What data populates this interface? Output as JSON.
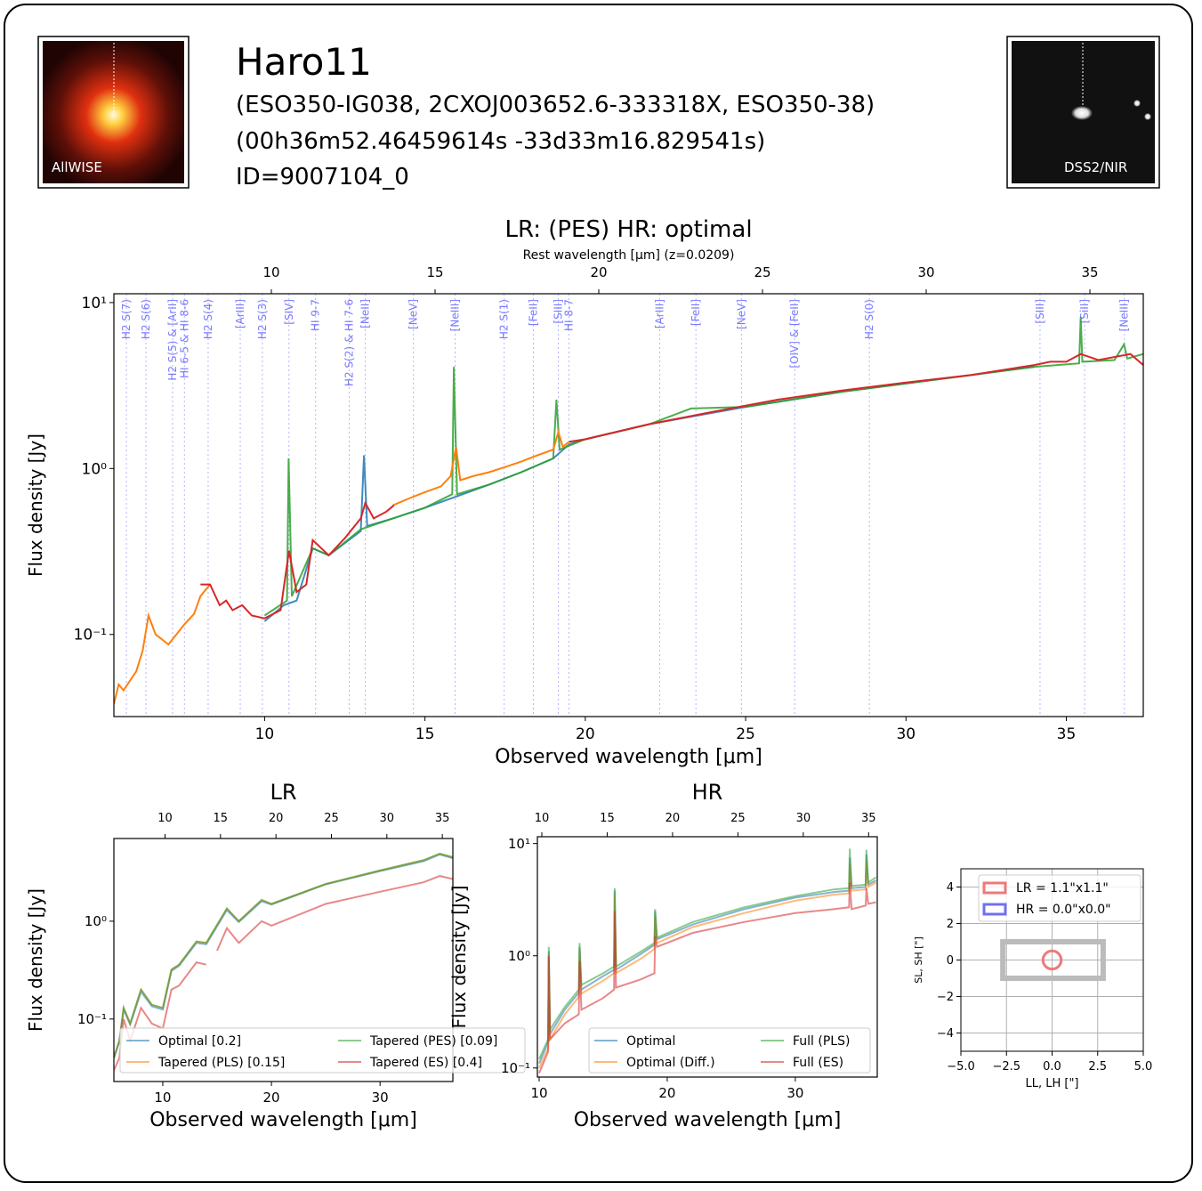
{
  "header": {
    "title": "Haro11",
    "aliases": "(ESO350-IG038, 2CXOJ003652.6-333318X, ESO350-38)",
    "coordinates": "(00h36m52.46459614s -33d33m16.829541s)",
    "id": "ID=9007104_0",
    "image_left_label": "AllWISE",
    "image_right_label": "DSS2/NIR"
  },
  "chart_data": [
    {
      "type": "line",
      "title": "LR:  (PES) HR: optimal",
      "x2label": "Rest wavelength [μm] (z=0.0209)",
      "xlabel": "Observed wavelength [μm]",
      "ylabel": "Flux density [Jy]",
      "log_y": true,
      "xlim": [
        5.3,
        37.4
      ],
      "xticks": [
        10,
        15,
        20,
        25,
        30,
        35
      ],
      "x2lim": [
        5.19,
        36.63
      ],
      "x2ticks": [
        10,
        15,
        20,
        25,
        30,
        35
      ],
      "ylim": [
        0.032,
        11.3
      ],
      "yticks": [
        {
          "value": 0.1,
          "label": "10⁻¹"
        },
        {
          "value": 1,
          "label": "10⁰"
        },
        {
          "value": 10,
          "label": "10¹"
        }
      ],
      "lines": [
        {
          "label": "H2 S(7)",
          "x": 5.69
        },
        {
          "label": "H2 S(6)",
          "x": 6.3
        },
        {
          "label": "H2 S(5) & [ArII]",
          "x": 7.13
        },
        {
          "label": "HI 6-5 & HI 8-6",
          "x": 7.5
        },
        {
          "label": "H2 S(4)",
          "x": 8.24
        },
        {
          "label": "[ArIII]",
          "x": 9.24
        },
        {
          "label": "H2 S(3)",
          "x": 9.93
        },
        {
          "label": "[SIV]",
          "x": 10.76
        },
        {
          "label": "HI 9-7",
          "x": 11.59
        },
        {
          "label": "H2 S(2) & HI 7-6",
          "x": 12.64
        },
        {
          "label": "[NeII]",
          "x": 13.14
        },
        {
          "label": "[NeV]",
          "x": 14.64
        },
        {
          "label": "[NeIII]",
          "x": 15.94
        },
        {
          "label": "H2 S(1)",
          "x": 17.47
        },
        {
          "label": "[FeII]",
          "x": 18.38
        },
        {
          "label": "[SIII]",
          "x": 19.16
        },
        {
          "label": "HI 8-7",
          "x": 19.49
        },
        {
          "label": "[ArIII]",
          "x": 22.32
        },
        {
          "label": "[FeII]",
          "x": 23.45
        },
        {
          "label": "[NeV]",
          "x": 24.87
        },
        {
          "label": "[OIV] & [FeII]",
          "x": 26.53
        },
        {
          "label": "H2 S(0)",
          "x": 28.86
        },
        {
          "label": "[SIII]",
          "x": 34.18
        },
        {
          "label": "[SiII]",
          "x": 35.57
        },
        {
          "label": "[NeIII]",
          "x": 36.81
        }
      ],
      "series": [
        {
          "color": "#1f77b4",
          "x": [
            10.0,
            10.6,
            11.0,
            11.5,
            12.0,
            13.0,
            13.1,
            13.2,
            14,
            15,
            16,
            17,
            18,
            19,
            19.5,
            20,
            22,
            25,
            28,
            31,
            34
          ],
          "values": [
            0.12,
            0.15,
            0.16,
            0.33,
            0.3,
            0.42,
            1.2,
            0.45,
            0.5,
            0.58,
            0.68,
            0.8,
            0.95,
            1.15,
            1.4,
            1.5,
            1.85,
            2.35,
            2.9,
            3.45,
            4.1
          ]
        },
        {
          "color": "#2ca02c",
          "x": [
            10.0,
            10.7,
            10.75,
            10.85,
            11.5,
            12,
            13,
            14,
            15,
            15.85,
            15.9,
            16,
            17,
            18,
            19,
            19.1,
            19.2,
            20,
            22,
            23.3,
            25,
            28,
            31,
            34,
            35.4,
            35.45,
            35.5,
            36.5,
            36.8,
            36.9,
            37.4
          ],
          "values": [
            0.13,
            0.16,
            1.15,
            0.17,
            0.33,
            0.3,
            0.43,
            0.5,
            0.58,
            0.7,
            4.1,
            0.7,
            0.8,
            0.95,
            1.15,
            2.6,
            1.3,
            1.5,
            1.85,
            2.3,
            2.35,
            2.9,
            3.45,
            4.1,
            4.3,
            8.2,
            4.4,
            4.5,
            5.6,
            4.6,
            4.9
          ]
        },
        {
          "color": "#ff7f0e",
          "x": [
            5.3,
            5.45,
            5.6,
            6.0,
            6.2,
            6.38,
            6.6,
            7.0,
            7.5,
            7.8,
            8.0,
            8.3,
            11,
            14.0,
            14.5,
            15.0,
            15.5,
            15.8,
            15.97,
            16.1,
            16.5,
            17.0,
            17.5,
            18.0,
            18.5,
            19.0,
            19.16,
            19.3,
            19.5
          ],
          "values": [
            0.038,
            0.05,
            0.046,
            0.06,
            0.08,
            0.13,
            0.1,
            0.087,
            0.115,
            0.133,
            0.17,
            0.2,
            null,
            0.6,
            0.66,
            0.72,
            0.78,
            0.9,
            1.35,
            0.85,
            0.9,
            0.95,
            1.02,
            1.1,
            1.2,
            1.3,
            1.66,
            1.35,
            1.45
          ]
        },
        {
          "color": "#d62728",
          "x": [
            8.0,
            8.3,
            8.6,
            8.8,
            9.0,
            9.3,
            9.6,
            10.0,
            10.5,
            10.76,
            11.0,
            11.3,
            11.5,
            12.0,
            12.5,
            13.0,
            13.14,
            13.4,
            13.8,
            14.03,
            17,
            19.5,
            20,
            22,
            24,
            26,
            28,
            30,
            32,
            34,
            34.5,
            35,
            35.45,
            36,
            37,
            37.4
          ],
          "values": [
            0.2,
            0.2,
            0.15,
            0.16,
            0.14,
            0.15,
            0.13,
            0.125,
            0.14,
            0.32,
            0.18,
            0.2,
            0.37,
            0.3,
            0.38,
            0.5,
            0.62,
            0.5,
            0.55,
            0.6,
            null,
            1.45,
            1.5,
            1.85,
            2.2,
            2.6,
            2.95,
            3.3,
            3.65,
            4.2,
            4.4,
            4.4,
            4.9,
            4.5,
            4.9,
            4.2
          ]
        }
      ]
    },
    {
      "type": "line",
      "title": "LR",
      "xlabel": "Observed wavelength [μm]",
      "ylabel": "Flux density [Jy]",
      "log_y": true,
      "xlim": [
        5.5,
        36.7
      ],
      "xticks": [
        10,
        20,
        30
      ],
      "x2lim": [
        5.39,
        35.95
      ],
      "x2ticks": [
        10,
        15,
        20,
        25,
        30,
        35
      ],
      "ylim": [
        0.023,
        7
      ],
      "yticks": [
        {
          "value": 0.1,
          "label": "10⁻¹"
        },
        {
          "value": 1,
          "label": "10⁰"
        }
      ],
      "series": [
        {
          "name": "Optimal [0.2]",
          "color": "#1f77b4",
          "x": [
            5.5,
            6,
            6.4,
            7,
            8,
            9,
            10,
            10.8,
            11.5,
            13.1,
            14,
            15.9,
            17,
            19.1,
            20,
            25,
            30,
            34,
            35.5,
            36.7
          ],
          "values": [
            0.04,
            0.058,
            0.125,
            0.088,
            0.19,
            0.135,
            0.125,
            0.31,
            0.35,
            0.6,
            0.58,
            1.3,
            0.98,
            1.6,
            1.48,
            2.38,
            3.25,
            4.1,
            4.8,
            4.4
          ]
        },
        {
          "name": "Tapered (PLS) [0.15]",
          "color": "#ff7f0e",
          "x": [
            5.5,
            6,
            6.4,
            7,
            8,
            9,
            10,
            10.8,
            11.5,
            13.1,
            14,
            15.9,
            17,
            19.1,
            20,
            25,
            30,
            34,
            35.5,
            36.7
          ],
          "values": [
            0.041,
            0.06,
            0.13,
            0.09,
            0.2,
            0.14,
            0.13,
            0.32,
            0.36,
            0.62,
            0.6,
            1.35,
            1.0,
            1.65,
            1.5,
            2.4,
            3.3,
            4.2,
            4.9,
            4.5
          ]
        },
        {
          "name": "Tapered (PES) [0.09]",
          "color": "#2ca02c",
          "x": [
            5.5,
            6,
            6.4,
            7,
            8,
            9,
            10,
            10.8,
            11.5,
            13.1,
            14,
            15.9,
            17,
            19.1,
            20,
            25,
            30,
            34,
            35.5,
            36.7
          ],
          "values": [
            0.04,
            0.06,
            0.13,
            0.09,
            0.2,
            0.14,
            0.13,
            0.32,
            0.36,
            0.62,
            0.6,
            1.35,
            1.0,
            1.65,
            1.5,
            2.4,
            3.3,
            4.2,
            4.9,
            4.5
          ]
        },
        {
          "name": "Tapered (ES) [0.4]",
          "color": "#d62728",
          "x": [
            5.5,
            6,
            6.4,
            7,
            8,
            9,
            10,
            10.8,
            11.5,
            13.1,
            14,
            14.5,
            15,
            15.9,
            17,
            19.1,
            20,
            25,
            30,
            34,
            35.5,
            36.7
          ],
          "values": [
            0.03,
            0.04,
            0.1,
            0.06,
            0.13,
            0.09,
            0.08,
            0.2,
            0.22,
            0.38,
            0.36,
            null,
            0.5,
            0.85,
            0.6,
            1.0,
            0.9,
            1.5,
            2.0,
            2.5,
            2.9,
            2.7
          ]
        }
      ]
    },
    {
      "type": "line",
      "title": "HR",
      "xlabel": "Observed wavelength [μm]",
      "ylabel": "Flux density [Jy]",
      "log_y": true,
      "xlim": [
        9.86,
        36.4
      ],
      "xticks": [
        10,
        20,
        30
      ],
      "x2lim": [
        9.66,
        35.66
      ],
      "x2ticks": [
        10,
        15,
        20,
        25,
        30,
        35
      ],
      "ylim": [
        0.083,
        11.5
      ],
      "yticks": [
        {
          "value": 0.1,
          "label": "10⁻¹"
        },
        {
          "value": 1,
          "label": "10⁰"
        },
        {
          "value": 10,
          "label": "10¹"
        }
      ],
      "series": [
        {
          "name": "Optimal",
          "color": "#1f77b4",
          "x": [
            10,
            10.7,
            10.75,
            10.85,
            12,
            13.1,
            13.15,
            13.3,
            15,
            15.85,
            15.9,
            16,
            18,
            19,
            19.05,
            19.2,
            22,
            26,
            30,
            33,
            34.2,
            34.25,
            34.4,
            35.5,
            35.55,
            35.7,
            36.3
          ],
          "values": [
            0.11,
            0.17,
            1.1,
            0.2,
            0.33,
            0.47,
            1.2,
            0.5,
            0.66,
            0.75,
            3.8,
            0.75,
            1.05,
            1.25,
            2.5,
            1.4,
            1.9,
            2.6,
            3.3,
            3.7,
            3.8,
            7.5,
            4.0,
            4.1,
            8.0,
            4.3,
            4.7
          ]
        },
        {
          "name": "Optimal (Diff.)",
          "color": "#ff7f0e",
          "x": [
            10,
            10.7,
            10.75,
            10.85,
            12,
            13.1,
            13.15,
            13.3,
            15,
            15.85,
            15.9,
            16,
            18,
            19,
            19.05,
            19.2,
            22,
            26,
            30,
            33,
            34.2,
            34.25,
            34.4,
            35.5,
            35.55,
            35.7,
            36.3
          ],
          "values": [
            0.1,
            0.15,
            1.0,
            0.18,
            0.3,
            0.43,
            1.1,
            0.46,
            0.6,
            0.7,
            3.5,
            0.7,
            0.95,
            1.15,
            2.3,
            1.3,
            1.8,
            2.4,
            3.1,
            3.5,
            3.6,
            6.5,
            3.8,
            3.9,
            7.0,
            4.1,
            4.5
          ]
        },
        {
          "name": "Full (PLS)",
          "color": "#2ca02c",
          "x": [
            10,
            10.7,
            10.75,
            10.85,
            12,
            13.1,
            13.15,
            13.3,
            15,
            15.85,
            15.9,
            16,
            18,
            19,
            19.05,
            19.2,
            22,
            26,
            30,
            33,
            34.2,
            34.25,
            34.4,
            35.5,
            35.55,
            35.7,
            36.3
          ],
          "values": [
            0.12,
            0.18,
            1.2,
            0.22,
            0.35,
            0.5,
            1.3,
            0.55,
            0.7,
            0.8,
            4.0,
            0.8,
            1.1,
            1.3,
            2.6,
            1.45,
            2.0,
            2.7,
            3.4,
            3.9,
            4.0,
            9.0,
            4.2,
            4.3,
            8.8,
            4.5,
            5.0
          ]
        },
        {
          "name": "Full (ES)",
          "color": "#d62728",
          "x": [
            10,
            10.7,
            10.75,
            10.85,
            12,
            13.1,
            13.15,
            13.3,
            15,
            15.85,
            15.9,
            16,
            18,
            19,
            19.05,
            19.2,
            22,
            26,
            30,
            33,
            34.2,
            34.25,
            34.4,
            35.5,
            35.55,
            35.7,
            36.3
          ],
          "values": [
            0.09,
            0.14,
            1.0,
            0.18,
            0.25,
            0.3,
            0.9,
            0.33,
            0.42,
            0.5,
            2.5,
            0.52,
            0.62,
            0.7,
            1.5,
            1.2,
            1.6,
            2.0,
            2.4,
            2.6,
            2.7,
            4.5,
            2.6,
            2.8,
            4.0,
            2.9,
            3.0
          ]
        }
      ]
    },
    {
      "type": "aperture",
      "xlabel": "LL, LH [\"]",
      "ylabel": "SL, SH [\"]",
      "grid": true,
      "xlim": [
        -5,
        5
      ],
      "xticks": [
        {
          "value": -5,
          "label": "−5.0"
        },
        {
          "value": -2.5,
          "label": "−2.5"
        },
        {
          "value": 0,
          "label": "0.0"
        },
        {
          "value": 2.5,
          "label": "2.5"
        },
        {
          "value": 5,
          "label": "5.0"
        }
      ],
      "ylim": [
        -5,
        5
      ],
      "yticks": [
        {
          "value": -4,
          "label": "−4"
        },
        {
          "value": -2,
          "label": "−2"
        },
        0,
        2,
        4
      ],
      "rectangle": {
        "xlim": [
          -2.7,
          2.8
        ],
        "ylim": [
          -1,
          1
        ],
        "color": "#bbbbbb"
      },
      "circle": {
        "x": 0,
        "y": 0,
        "r": 0.5
      },
      "series": [
        {
          "name": "LR = 1.1\"x1.1\"",
          "color": "#f07878"
        },
        {
          "name": "HR = 0.0\"x0.0\"",
          "color": "#7070f0"
        }
      ]
    }
  ]
}
